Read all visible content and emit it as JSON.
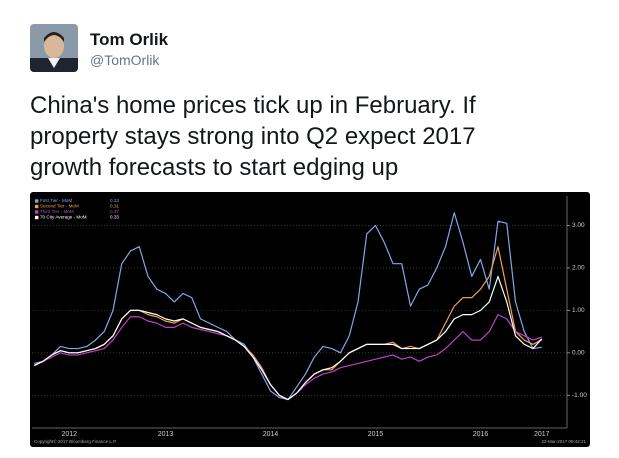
{
  "tweet": {
    "name": "Tom Orlik",
    "handle": "@TomOrlik",
    "text_lines": [
      "China's home prices tick up in February. If",
      "property stays strong into Q2 expect 2017",
      "growth forecasts to start edging up"
    ]
  },
  "chart_data": {
    "type": "line",
    "categories": [
      null,
      null,
      null,
      null,
      "2012",
      null,
      null,
      null,
      null,
      null,
      null,
      null,
      null,
      null,
      null,
      "2013",
      null,
      null,
      null,
      null,
      null,
      null,
      null,
      null,
      null,
      null,
      null,
      "2014",
      null,
      null,
      null,
      null,
      null,
      null,
      null,
      null,
      null,
      null,
      null,
      "2015",
      null,
      null,
      null,
      null,
      null,
      null,
      null,
      null,
      null,
      null,
      null,
      "2016",
      null,
      null,
      null,
      null,
      null,
      null,
      "2017"
    ],
    "series": [
      {
        "name": "First Tier - MoM",
        "color": "#7fa8e8",
        "values": [
          -0.25,
          -0.2,
          -0.05,
          0.15,
          0.1,
          0.1,
          0.15,
          0.3,
          0.5,
          1.0,
          2.1,
          2.4,
          2.5,
          1.8,
          1.5,
          1.4,
          1.2,
          1.4,
          1.3,
          0.8,
          0.7,
          0.6,
          0.5,
          0.3,
          0.2,
          -0.1,
          -0.5,
          -0.9,
          -1.05,
          -1.1,
          -0.8,
          -0.5,
          -0.1,
          0.15,
          0.1,
          0.0,
          0.4,
          1.2,
          2.8,
          3.0,
          2.6,
          2.1,
          2.1,
          1.1,
          1.5,
          1.6,
          2.0,
          2.5,
          3.3,
          2.6,
          1.8,
          2.2,
          1.5,
          3.1,
          3.05,
          1.2,
          0.5,
          0.1,
          0.13
        ]
      },
      {
        "name": "Second Tier - MoM",
        "color": "#f0a050",
        "values": [
          -0.3,
          -0.2,
          -0.05,
          0.05,
          0.0,
          0.0,
          0.05,
          0.1,
          0.2,
          0.4,
          0.8,
          1.0,
          1.0,
          0.9,
          0.85,
          0.75,
          0.7,
          0.8,
          0.7,
          0.6,
          0.55,
          0.5,
          0.4,
          0.3,
          0.15,
          -0.05,
          -0.35,
          -0.75,
          -1.0,
          -1.1,
          -0.95,
          -0.7,
          -0.5,
          -0.4,
          -0.4,
          -0.2,
          0.0,
          0.1,
          0.2,
          0.2,
          0.2,
          0.25,
          0.1,
          0.15,
          0.1,
          0.2,
          0.3,
          0.7,
          1.1,
          1.3,
          1.3,
          1.5,
          1.8,
          2.5,
          1.5,
          0.5,
          0.3,
          0.2,
          0.31
        ]
      },
      {
        "name": "Third Tier - MoM",
        "color": "#c040c8",
        "values": [
          -0.3,
          -0.2,
          -0.1,
          0.0,
          -0.05,
          -0.05,
          0.0,
          0.05,
          0.1,
          0.3,
          0.6,
          0.85,
          0.85,
          0.75,
          0.7,
          0.6,
          0.6,
          0.7,
          0.6,
          0.55,
          0.5,
          0.45,
          0.4,
          0.3,
          0.15,
          -0.1,
          -0.4,
          -0.75,
          -1.0,
          -1.1,
          -0.95,
          -0.75,
          -0.6,
          -0.5,
          -0.45,
          -0.35,
          -0.3,
          -0.25,
          -0.2,
          -0.15,
          -0.1,
          -0.05,
          -0.15,
          -0.1,
          -0.2,
          -0.1,
          -0.05,
          0.1,
          0.3,
          0.5,
          0.3,
          0.3,
          0.5,
          0.9,
          0.8,
          0.5,
          0.4,
          0.3,
          0.37
        ]
      },
      {
        "name": "70 City Average - MoM",
        "color": "#ffffff",
        "values": [
          -0.3,
          -0.2,
          -0.05,
          0.05,
          0.0,
          0.0,
          0.05,
          0.1,
          0.2,
          0.4,
          0.8,
          1.0,
          1.0,
          0.95,
          0.9,
          0.8,
          0.75,
          0.8,
          0.7,
          0.6,
          0.55,
          0.5,
          0.4,
          0.3,
          0.15,
          -0.1,
          -0.4,
          -0.75,
          -1.0,
          -1.1,
          -0.95,
          -0.7,
          -0.5,
          -0.4,
          -0.35,
          -0.2,
          0.0,
          0.1,
          0.2,
          0.2,
          0.2,
          0.2,
          0.1,
          0.1,
          0.1,
          0.2,
          0.3,
          0.5,
          0.8,
          0.9,
          0.9,
          1.0,
          1.2,
          1.8,
          1.2,
          0.4,
          0.2,
          0.1,
          0.33
        ]
      }
    ],
    "ylim": [
      -1.7,
      3.6
    ],
    "yticks": [
      {
        "value": 3,
        "label": "3.00"
      },
      {
        "value": 2,
        "label": "2.00"
      },
      {
        "value": 1,
        "label": "1.00"
      },
      {
        "value": 0,
        "label": "0.00"
      },
      {
        "value": -1,
        "label": "-1.00"
      }
    ],
    "grid": true,
    "legend": "top-left",
    "copyright": "Copyright© 2017 Bloomberg Finance L.P.",
    "timestamp": "23-Mar-2017 09:42:21"
  }
}
